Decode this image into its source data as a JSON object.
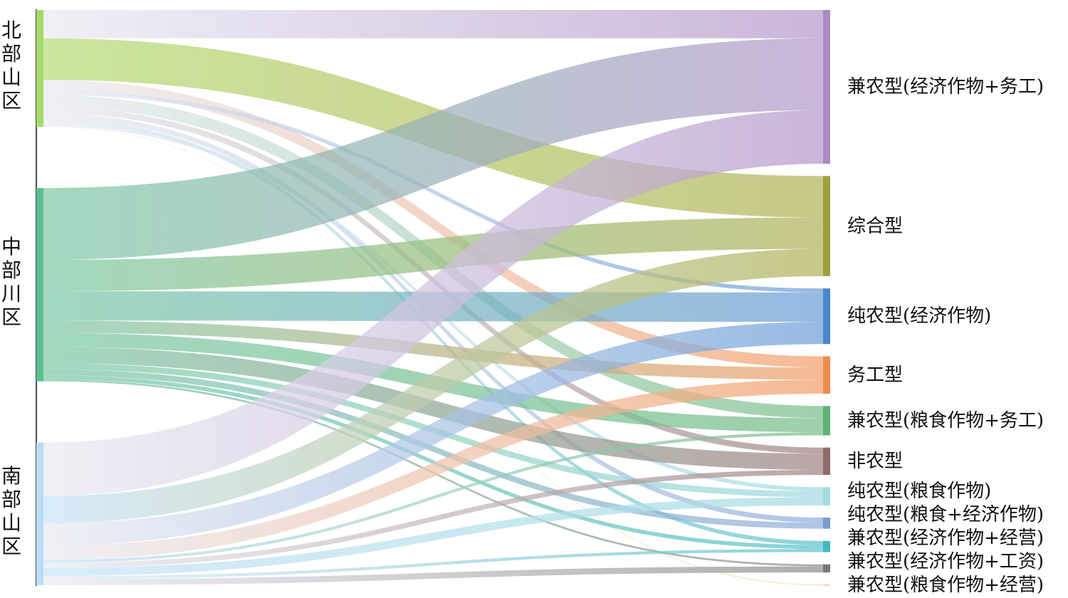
{
  "chart_data": {
    "type": "sankey",
    "sources": [
      {
        "id": "north",
        "label": "北部山区",
        "color": "#a6d96a",
        "linkColor": "#b8dc78"
      },
      {
        "id": "central",
        "label": "中部川区",
        "color": "#5abf8f",
        "linkColor": "#7fc9a6"
      },
      {
        "id": "south",
        "label": "南部山区",
        "color": "#b9dcf4",
        "linkColor": "#c9e4f7"
      }
    ],
    "targets": [
      {
        "id": "t1",
        "label": "兼农型(经济作物+务工)",
        "color": "#a98bc2",
        "linkColor": "#b59acc"
      },
      {
        "id": "t2",
        "label": "综合型",
        "color": "#9e9f3e",
        "linkColor": "#b2b35a"
      },
      {
        "id": "t3",
        "label": "纯农型(经济作物)",
        "color": "#4a86c8",
        "linkColor": "#6f9fd8"
      },
      {
        "id": "t4",
        "label": "务工型",
        "color": "#ef8b4d",
        "linkColor": "#f2a06c"
      },
      {
        "id": "t5",
        "label": "兼农型(粮食作物+务工)",
        "color": "#5fb277",
        "linkColor": "#78bd8a"
      },
      {
        "id": "t6",
        "label": "非农型",
        "color": "#8f6b6b",
        "linkColor": "#a08484"
      },
      {
        "id": "t7",
        "label": "纯农型(粮食作物)",
        "color": "#a5dbe2",
        "linkColor": "#a5dbe2"
      },
      {
        "id": "t8",
        "label": "纯农型(粮食+经济作物)",
        "color": "#7a9ad0",
        "linkColor": "#93aedb"
      },
      {
        "id": "t9",
        "label": "兼农型(经济作物+经营)",
        "color": "#40b8c0",
        "linkColor": "#5cc3ca"
      },
      {
        "id": "t10",
        "label": "兼农型(经济作物+工资)",
        "color": "#777777",
        "linkColor": "#8e8e8e"
      },
      {
        "id": "t11",
        "label": "兼农型(粮食作物+经营)",
        "color": "#e0b84a",
        "linkColor": "#e5c56a"
      }
    ],
    "links": [
      {
        "source": "north",
        "target": "t1",
        "value": 28,
        "colorBy": "target"
      },
      {
        "source": "north",
        "target": "t2",
        "value": 41,
        "colorBy": "source"
      },
      {
        "source": "north",
        "target": "t4",
        "value": 11,
        "colorBy": "target"
      },
      {
        "source": "north",
        "target": "t3",
        "value": 4,
        "colorBy": "target"
      },
      {
        "source": "north",
        "target": "t5",
        "value": 12,
        "colorBy": "target"
      },
      {
        "source": "north",
        "target": "t6",
        "value": 6,
        "colorBy": "target"
      },
      {
        "source": "north",
        "target": "t8",
        "value": 5,
        "colorBy": "target"
      },
      {
        "source": "north",
        "target": "t9",
        "value": 4,
        "colorBy": "target"
      },
      {
        "source": "north",
        "target": "t7",
        "value": 4,
        "colorBy": "target"
      },
      {
        "source": "north",
        "target": "t11",
        "value": 0.5,
        "colorBy": "target"
      },
      {
        "source": "central",
        "target": "t1",
        "value": 71,
        "colorBy": "source"
      },
      {
        "source": "central",
        "target": "t2",
        "value": 31,
        "colorBy": "source"
      },
      {
        "source": "central",
        "target": "t3",
        "value": 29,
        "colorBy": "source"
      },
      {
        "source": "central",
        "target": "t4",
        "value": 12,
        "colorBy": "source"
      },
      {
        "source": "central",
        "target": "t5",
        "value": 14,
        "colorBy": "source"
      },
      {
        "source": "central",
        "target": "t6",
        "value": 16,
        "colorBy": "source"
      },
      {
        "source": "central",
        "target": "t7",
        "value": 6,
        "colorBy": "source"
      },
      {
        "source": "central",
        "target": "t8",
        "value": 6,
        "colorBy": "source"
      },
      {
        "source": "central",
        "target": "t9",
        "value": 4,
        "colorBy": "source"
      },
      {
        "source": "central",
        "target": "t10",
        "value": 2,
        "colorBy": "source"
      },
      {
        "source": "south",
        "target": "t1",
        "value": 53,
        "colorBy": "target"
      },
      {
        "source": "south",
        "target": "t2",
        "value": 27,
        "colorBy": "source"
      },
      {
        "source": "south",
        "target": "t3",
        "value": 22,
        "colorBy": "target"
      },
      {
        "source": "south",
        "target": "t4",
        "value": 14,
        "colorBy": "target"
      },
      {
        "source": "south",
        "target": "t5",
        "value": 3,
        "colorBy": "source"
      },
      {
        "source": "south",
        "target": "t6",
        "value": 5,
        "colorBy": "target"
      },
      {
        "source": "south",
        "target": "t7",
        "value": 8,
        "colorBy": "source"
      },
      {
        "source": "south",
        "target": "t9",
        "value": 3,
        "colorBy": "target"
      },
      {
        "source": "south",
        "target": "t10",
        "value": 6,
        "colorBy": "target"
      }
    ]
  }
}
